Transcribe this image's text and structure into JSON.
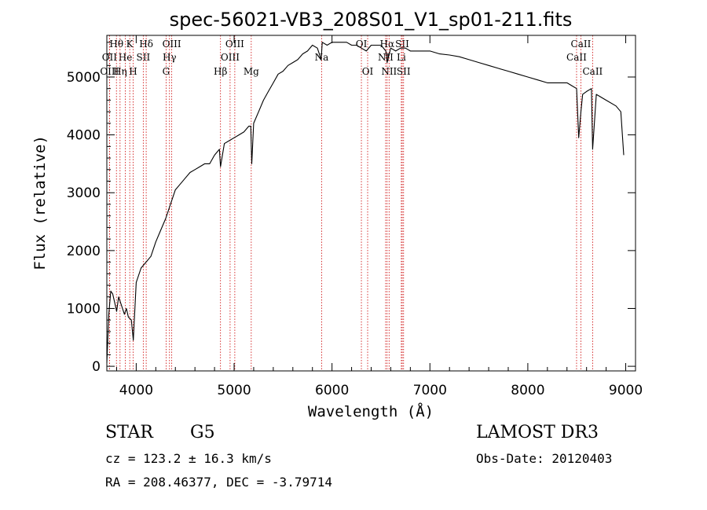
{
  "chart_data": {
    "type": "line",
    "title": "spec-56021-VB3_208S01_V1_sp01-211.fits",
    "xlabel": "Wavelength (Å)",
    "ylabel": "Flux (relative)",
    "xlim": [
      3700,
      9100
    ],
    "ylim": [
      -80,
      5720
    ],
    "x_ticks": [
      4000,
      5000,
      6000,
      7000,
      8000,
      9000
    ],
    "x_tick_labels": [
      "4000",
      "5000",
      "6000",
      "7000",
      "8000",
      "9000"
    ],
    "y_ticks": [
      0,
      1000,
      2000,
      3000,
      4000,
      5000
    ],
    "y_tick_labels": [
      "0",
      "1000",
      "2000",
      "3000",
      "4000",
      "5000"
    ],
    "series": [
      {
        "name": "spectrum",
        "color": "#000000",
        "x": [
          3700,
          3720,
          3740,
          3760,
          3780,
          3800,
          3820,
          3850,
          3880,
          3900,
          3920,
          3950,
          3970,
          3990,
          4000,
          4050,
          4100,
          4150,
          4200,
          4250,
          4300,
          4350,
          4400,
          4450,
          4500,
          4550,
          4600,
          4650,
          4700,
          4750,
          4800,
          4850,
          4861,
          4900,
          4950,
          5000,
          5050,
          5100,
          5150,
          5170,
          5180,
          5200,
          5250,
          5300,
          5350,
          5400,
          5450,
          5500,
          5550,
          5600,
          5650,
          5700,
          5750,
          5800,
          5850,
          5890,
          5900,
          5950,
          6000,
          6050,
          6100,
          6150,
          6200,
          6250,
          6300,
          6350,
          6400,
          6450,
          6500,
          6550,
          6563,
          6600,
          6650,
          6700,
          6750,
          6800,
          6900,
          7000,
          7100,
          7200,
          7300,
          7400,
          7500,
          7600,
          7700,
          7800,
          7900,
          8000,
          8100,
          8200,
          8300,
          8400,
          8450,
          8498,
          8520,
          8542,
          8560,
          8600,
          8650,
          8662,
          8700,
          8800,
          8900,
          8950,
          8980
        ],
        "y": [
          60,
          900,
          1300,
          1250,
          1100,
          950,
          1200,
          1050,
          900,
          1000,
          850,
          800,
          450,
          1100,
          1450,
          1700,
          1800,
          1900,
          2150,
          2350,
          2550,
          2800,
          3050,
          3150,
          3250,
          3350,
          3400,
          3450,
          3500,
          3500,
          3650,
          3750,
          3450,
          3850,
          3900,
          3950,
          4000,
          4050,
          4150,
          4150,
          3500,
          4200,
          4400,
          4600,
          4750,
          4900,
          5050,
          5100,
          5200,
          5250,
          5300,
          5400,
          5450,
          5550,
          5500,
          5300,
          5600,
          5550,
          5600,
          5600,
          5600,
          5600,
          5550,
          5550,
          5500,
          5450,
          5550,
          5550,
          5550,
          5450,
          5250,
          5500,
          5450,
          5500,
          5500,
          5450,
          5450,
          5450,
          5400,
          5380,
          5350,
          5300,
          5250,
          5200,
          5150,
          5100,
          5050,
          5000,
          4950,
          4900,
          4900,
          4900,
          4850,
          4800,
          3950,
          4400,
          4700,
          4750,
          4800,
          3750,
          4700,
          4600,
          4500,
          4400,
          3650
        ]
      }
    ],
    "lines": [
      {
        "label": "Hθ",
        "wave": 3798,
        "row": 0
      },
      {
        "label": "OII",
        "wave": 3727,
        "row": 1
      },
      {
        "label": "OIII",
        "wave": 3727,
        "row": 2
      },
      {
        "label": "He",
        "wave": 3889,
        "row": 1
      },
      {
        "label": "Hη",
        "wave": 3835,
        "row": 2
      },
      {
        "label": "K",
        "wave": 3934,
        "row": 0
      },
      {
        "label": "H",
        "wave": 3969,
        "row": 2
      },
      {
        "label": "SII",
        "wave": 4072,
        "row": 1
      },
      {
        "label": "Hδ",
        "wave": 4102,
        "row": 0
      },
      {
        "label": "OIII",
        "wave": 4363,
        "row": 0
      },
      {
        "label": "Hγ",
        "wave": 4340,
        "row": 1
      },
      {
        "label": "G",
        "wave": 4305,
        "row": 2
      },
      {
        "label": "Hβ",
        "wave": 4861,
        "row": 2
      },
      {
        "label": "OIII",
        "wave": 5007,
        "row": 0
      },
      {
        "label": "OIII",
        "wave": 4959,
        "row": 1
      },
      {
        "label": "Mg",
        "wave": 5175,
        "row": 2
      },
      {
        "label": "Na",
        "wave": 5894,
        "row": 1
      },
      {
        "label": "OI",
        "wave": 6300,
        "row": 0
      },
      {
        "label": "OI",
        "wave": 6364,
        "row": 2
      },
      {
        "label": "NII",
        "wave": 6548,
        "row": 1
      },
      {
        "label": "Hα",
        "wave": 6563,
        "row": 0
      },
      {
        "label": "NII",
        "wave": 6583,
        "row": 2
      },
      {
        "label": "SII",
        "wave": 6717,
        "row": 0
      },
      {
        "label": "Li",
        "wave": 6708,
        "row": 1
      },
      {
        "label": "SII",
        "wave": 6731,
        "row": 2
      },
      {
        "label": "CaII",
        "wave": 8542,
        "row": 0
      },
      {
        "label": "CaII",
        "wave": 8498,
        "row": 1
      },
      {
        "label": "CaII",
        "wave": 8662,
        "row": 2
      }
    ]
  },
  "info": {
    "class_label": "STAR",
    "subclass": "G5",
    "survey": "LAMOST DR3",
    "cz": "cz = 123.2 ± 16.3 km/s",
    "obs_date": "Obs-Date: 20120403",
    "radec": "RA = 208.46377, DEC =  -3.79714"
  },
  "colors": {
    "spectrum": "#000000",
    "line_markers": "#cc0000",
    "axes": "#000000"
  }
}
